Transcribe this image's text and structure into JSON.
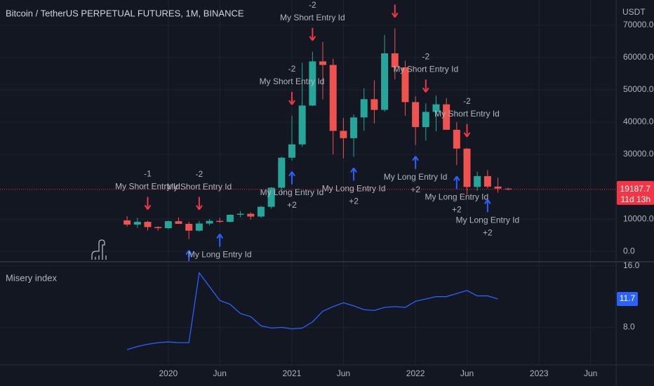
{
  "chart_data": [
    {
      "type": "candlestick",
      "title": "Bitcoin / TetherUS PERPETUAL FUTURES, 1M, BINANCE",
      "y_axis_label": "USDT",
      "x": [
        "2019-09",
        "2019-10",
        "2019-11",
        "2019-12",
        "2020-01",
        "2020-02",
        "2020-03",
        "2020-04",
        "2020-05",
        "2020-06",
        "2020-07",
        "2020-08",
        "2020-09",
        "2020-10",
        "2020-11",
        "2020-12",
        "2021-01",
        "2021-02",
        "2021-03",
        "2021-04",
        "2021-05",
        "2021-06",
        "2021-07",
        "2021-08",
        "2021-09",
        "2021-10",
        "2021-11",
        "2021-12",
        "2022-01",
        "2022-02",
        "2022-03",
        "2022-04",
        "2022-05",
        "2022-06",
        "2022-07",
        "2022-08",
        "2022-09",
        "2022-10"
      ],
      "open": [
        9600,
        8290,
        9150,
        7540,
        7190,
        9350,
        8520,
        6410,
        8620,
        9450,
        9140,
        11340,
        11650,
        10780,
        13800,
        19700,
        28990,
        33110,
        45140,
        58800,
        57700,
        37300,
        35040,
        41460,
        47100,
        43790,
        61300,
        56950,
        46200,
        38470,
        43160,
        45510,
        37630,
        31800,
        19940,
        23300,
        20050,
        19420
      ],
      "high": [
        10900,
        10370,
        9500,
        7750,
        9580,
        10500,
        9190,
        9460,
        10070,
        10380,
        11440,
        12470,
        12070,
        14100,
        19920,
        29300,
        41950,
        58350,
        61800,
        64850,
        59600,
        41300,
        42400,
        50500,
        52920,
        67000,
        69000,
        59050,
        47990,
        45800,
        48190,
        47440,
        40000,
        31990,
        24670,
        25200,
        22800,
        19700
      ],
      "low": [
        7700,
        7300,
        6500,
        6430,
        6850,
        8450,
        3780,
        6150,
        8100,
        8830,
        8970,
        10540,
        9820,
        10370,
        13200,
        17570,
        28130,
        32380,
        45000,
        47040,
        30000,
        28800,
        29280,
        37330,
        39600,
        43280,
        53250,
        42000,
        32900,
        34300,
        37150,
        37700,
        26700,
        17600,
        18780,
        19520,
        18150,
        18900
      ],
      "close": [
        8290,
        9150,
        7540,
        7190,
        9350,
        8520,
        6410,
        8620,
        9450,
        9140,
        11340,
        11650,
        10780,
        13800,
        19700,
        28990,
        33110,
        45140,
        58800,
        57700,
        37300,
        35040,
        41460,
        47100,
        43790,
        61300,
        56950,
        46200,
        38470,
        43160,
        45510,
        37630,
        31800,
        19940,
        23300,
        20050,
        19420,
        19190
      ],
      "up_color": "#26a69a",
      "down_color": "#ef5350",
      "ylim": [
        -3000,
        77800
      ],
      "yticks": [
        {
          "value": 0,
          "label": "0.0"
        },
        {
          "value": 10000,
          "label": "10000.0"
        },
        {
          "value": 30000,
          "label": "30000.0"
        },
        {
          "value": 40000,
          "label": "40000.0"
        },
        {
          "value": 50000,
          "label": "50000.0"
        },
        {
          "value": 60000,
          "label": "60000.0"
        },
        {
          "value": 70000,
          "label": "70000.0"
        }
      ],
      "xlim": [
        "2018-09",
        "2023-08"
      ],
      "xticks": [
        {
          "value": "2020-01",
          "label": "2020"
        },
        {
          "value": "2020-06",
          "label": "Jun"
        },
        {
          "value": "2021-01",
          "label": "2021"
        },
        {
          "value": "2021-06",
          "label": "Jun"
        },
        {
          "value": "2022-01",
          "label": "2022"
        },
        {
          "value": "2022-06",
          "label": "Jun"
        },
        {
          "value": "2023-01",
          "label": "2023"
        },
        {
          "value": "2023-06",
          "label": "Jun"
        }
      ],
      "grid": true,
      "last_price": {
        "value": 19187.7,
        "countdown": "11d 13h",
        "color": "#f23645"
      },
      "short_entries": {
        "color": "#f23645",
        "items": [
          {
            "x": "2019-11",
            "label": "My Short Entry Id",
            "qty": "-1"
          },
          {
            "x": "2020-04",
            "label": "My Short Entry Id",
            "qty": "-2"
          },
          {
            "x": "2021-01",
            "label": "My Short Entry Id",
            "qty": "-2"
          },
          {
            "x": "2021-03",
            "label": "My Short Entry Id",
            "qty": "-2"
          },
          {
            "x": "2021-11"
          },
          {
            "x": "2022-02",
            "label": "My Short Entry Id",
            "qty": "-2"
          },
          {
            "x": "2022-06",
            "label": "My Short Entry Id",
            "qty": "-2"
          }
        ]
      },
      "long_entries": {
        "color": "#2962ff",
        "items": [
          {
            "x": "2020-03"
          },
          {
            "x": "2020-06",
            "label": "My Long Entry Id"
          },
          {
            "x": "2021-01",
            "label": "My Long Entry Id",
            "qty": "+2"
          },
          {
            "x": "2021-07",
            "label": "My Long Entry Id",
            "qty": "+2"
          },
          {
            "x": "2022-01",
            "label": "My Long Entry Id",
            "qty": "+2"
          },
          {
            "x": "2022-05",
            "label": "My Long Entry Id",
            "qty": "+2"
          },
          {
            "x": "2022-08",
            "label": "My Long Entry Id",
            "qty": "+2"
          }
        ]
      }
    },
    {
      "type": "line",
      "title": "Misery index",
      "series": [
        {
          "name": "Misery index",
          "color": "#2962ff",
          "values": [
            5.1,
            5.5,
            5.8,
            6.0,
            6.1,
            6.0,
            6.0,
            15.1,
            13.3,
            11.5,
            11.0,
            9.8,
            9.4,
            8.2,
            7.9,
            8.0,
            7.8,
            7.9,
            8.7,
            10.1,
            10.7,
            11.2,
            10.8,
            10.3,
            10.2,
            10.6,
            10.7,
            10.6,
            11.4,
            11.7,
            12.0,
            12.0,
            12.4,
            12.8,
            12.1,
            12.1,
            11.7,
            null
          ]
        }
      ],
      "ylim": [
        3.1,
        16.45
      ],
      "yticks": [
        {
          "value": 8,
          "label": "8.0"
        },
        {
          "value": 16,
          "label": "16.0"
        }
      ]
    }
  ]
}
